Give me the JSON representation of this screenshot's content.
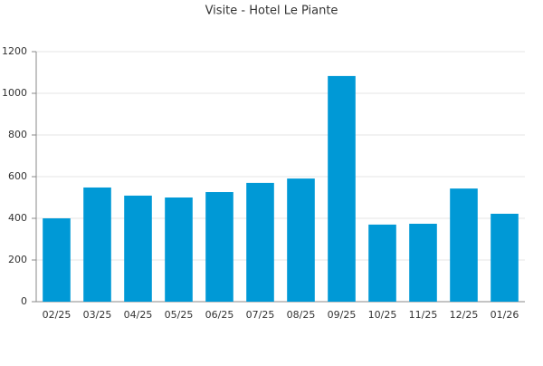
{
  "chart_data": {
    "type": "bar",
    "title": "Visite - Hotel Le Piante",
    "categories": [
      "02/25",
      "03/25",
      "04/25",
      "05/25",
      "06/25",
      "07/25",
      "08/25",
      "09/25",
      "10/25",
      "11/25",
      "12/25",
      "01/26"
    ],
    "values": [
      400,
      548,
      509,
      500,
      526,
      570,
      591,
      1083,
      370,
      374,
      543,
      422
    ],
    "color": "#0099d6",
    "ylim": [
      0,
      1200
    ],
    "yticks": [
      0,
      200,
      400,
      600,
      800,
      1000,
      1200
    ],
    "grid": true
  }
}
